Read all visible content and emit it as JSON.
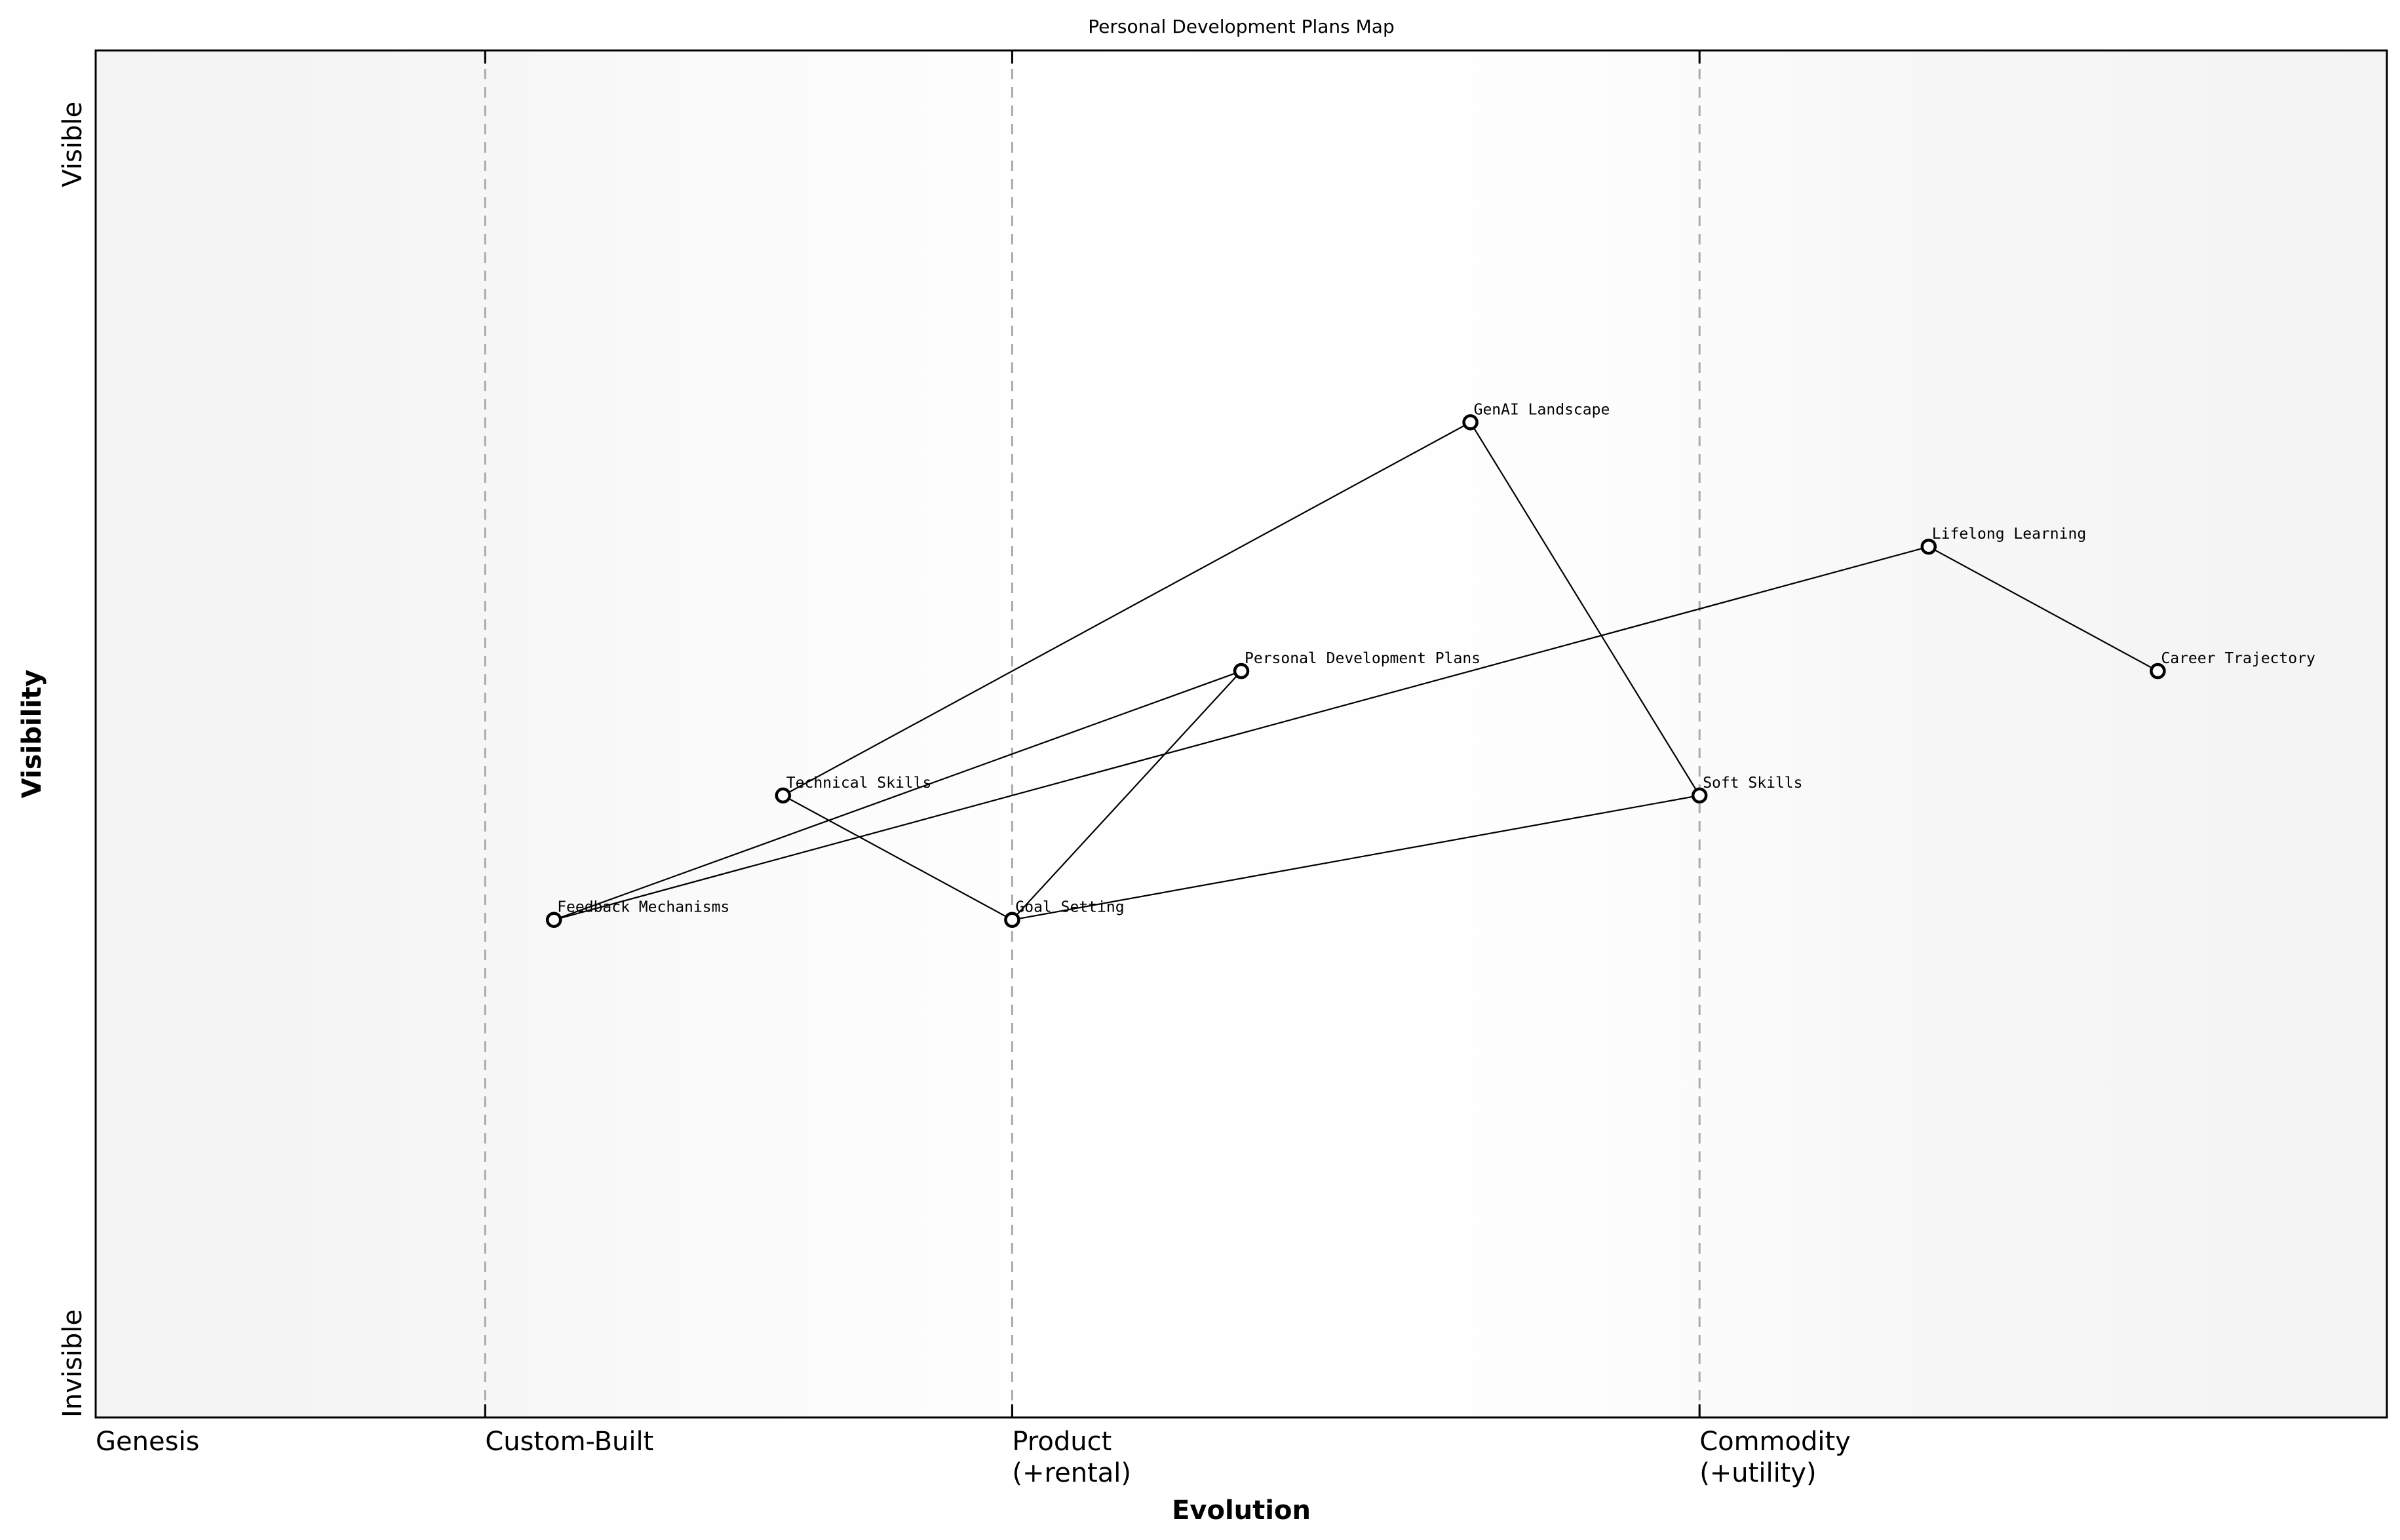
{
  "chart_data": {
    "type": "scatter",
    "subtype": "wardley-map",
    "title": "Personal Development Plans Map",
    "xlabel": "Evolution",
    "ylabel": "Visibility",
    "xlim": [
      0,
      1
    ],
    "ylim": [
      0,
      1
    ],
    "grid": false,
    "x_ticks": [
      {
        "pos": 0.0,
        "label": "Genesis"
      },
      {
        "pos": 0.17,
        "label": "Custom-Built"
      },
      {
        "pos": 0.4,
        "label": "Product\n(+rental)"
      },
      {
        "pos": 0.7,
        "label": "Commodity\n(+utility)"
      }
    ],
    "y_ticks": [
      {
        "pos": 0.0,
        "label": "Invisible"
      },
      {
        "pos": 0.9,
        "label": "Visible"
      }
    ],
    "stage_dividers": [
      0.17,
      0.4,
      0.7
    ],
    "nodes": [
      {
        "id": "fm",
        "label": "Feedback Mechanisms",
        "x": 0.2,
        "y": 0.364
      },
      {
        "id": "ts",
        "label": "Technical Skills",
        "x": 0.3,
        "y": 0.455
      },
      {
        "id": "gs",
        "label": "Goal Setting",
        "x": 0.4,
        "y": 0.364
      },
      {
        "id": "pdp",
        "label": "Personal Development Plans",
        "x": 0.5,
        "y": 0.546
      },
      {
        "id": "genai",
        "label": "GenAI Landscape",
        "x": 0.6,
        "y": 0.728
      },
      {
        "id": "ss",
        "label": "Soft Skills",
        "x": 0.7,
        "y": 0.455
      },
      {
        "id": "ll",
        "label": "Lifelong Learning",
        "x": 0.8,
        "y": 0.637
      },
      {
        "id": "ct",
        "label": "Career Trajectory",
        "x": 0.9,
        "y": 0.546
      }
    ],
    "edges": [
      [
        "ts",
        "genai"
      ],
      [
        "ts",
        "gs"
      ],
      [
        "fm",
        "pdp"
      ],
      [
        "fm",
        "ll"
      ],
      [
        "gs",
        "pdp"
      ],
      [
        "gs",
        "ss"
      ],
      [
        "genai",
        "ss"
      ],
      [
        "ll",
        "ct"
      ]
    ]
  },
  "colors": {
    "background": "#ffffff",
    "plot_edge": "#f4f4f4",
    "plot_center": "#ffffff",
    "divider": "#aaaaaa",
    "line": "#000000",
    "node_fill": "#ffffff",
    "node_stroke": "#000000"
  }
}
